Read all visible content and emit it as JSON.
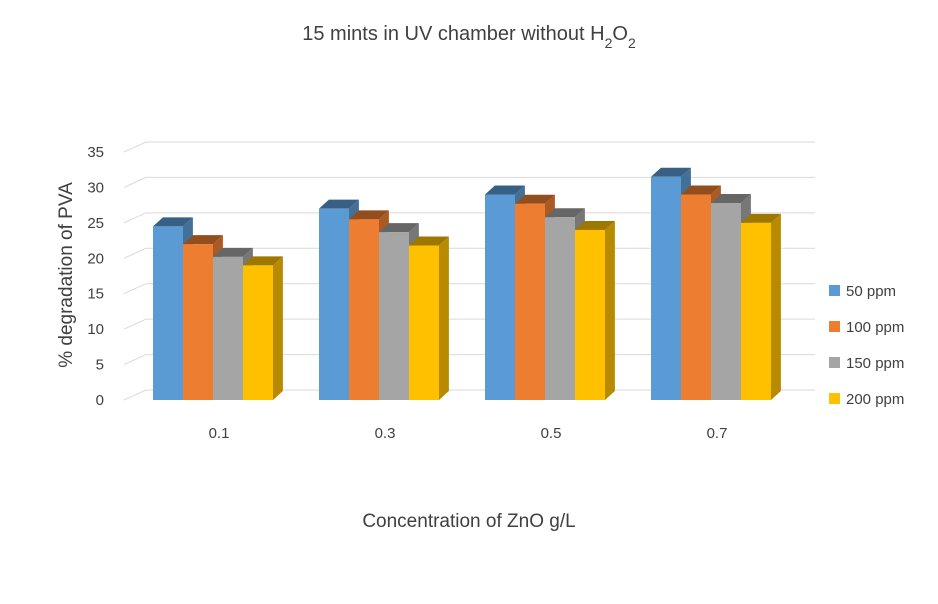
{
  "chart_data": {
    "type": "bar",
    "title": {
      "prefix": "15  mints in UV chamber without H",
      "sub1": "2",
      "mid": "O",
      "sub2": "2"
    },
    "xlabel": "Concentration of ZnO g/L",
    "ylabel": "% degradation of PVA",
    "ylim": [
      0,
      35
    ],
    "yticks": [
      0,
      5,
      10,
      15,
      20,
      25,
      30,
      35
    ],
    "grid": true,
    "legend_position": "right",
    "categories": [
      "0.1",
      "0.3",
      "0.5",
      "0.7"
    ],
    "series": [
      {
        "name": "50 ppm",
        "color": "#5b9bd5",
        "values": [
          24.5,
          27.0,
          29.0,
          31.5
        ]
      },
      {
        "name": "100 ppm",
        "color": "#ed7d31",
        "values": [
          22.0,
          25.5,
          27.7,
          29.0
        ]
      },
      {
        "name": "150 ppm",
        "color": "#a5a5a5",
        "values": [
          20.2,
          23.7,
          25.8,
          27.8
        ]
      },
      {
        "name": "200 ppm",
        "color": "#ffc000",
        "values": [
          19.0,
          21.8,
          24.0,
          25.0
        ]
      }
    ]
  }
}
